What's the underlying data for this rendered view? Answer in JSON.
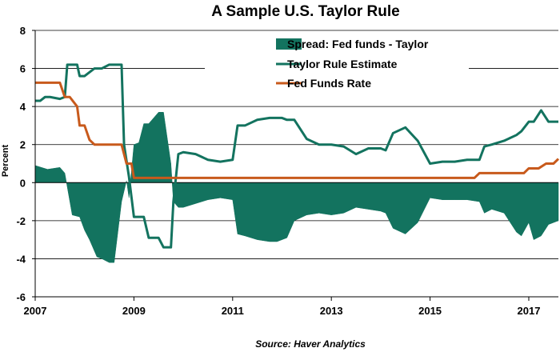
{
  "chart_data": {
    "type": "line",
    "title": "A Sample U.S. Taylor Rule",
    "ylabel": "Percent",
    "xlabel": "",
    "xlim": [
      2007,
      2017.6
    ],
    "ylim": [
      -6,
      8
    ],
    "y_ticks": [
      8,
      6,
      4,
      2,
      0,
      -2,
      -4,
      -6
    ],
    "x_ticks": [
      2007,
      2009,
      2011,
      2013,
      2015,
      2017
    ],
    "grid": "horizontal",
    "legend_position": "top-right",
    "source": "Source: Haver Analytics",
    "colors": {
      "spread": "#13735f",
      "taylor": "#13735f",
      "fedfunds": "#c85a1c",
      "gridline": "#000000"
    },
    "series": [
      {
        "name": "Spread: Fed funds - Taylor",
        "kind": "area",
        "x": [
          2007.0,
          2007.25,
          2007.5,
          2007.6,
          2007.75,
          2007.9,
          2008.0,
          2008.1,
          2008.25,
          2008.35,
          2008.5,
          2008.6,
          2008.75,
          2008.85,
          2008.9,
          2009.0,
          2009.1,
          2009.2,
          2009.3,
          2009.5,
          2009.6,
          2009.75,
          2009.8,
          2009.9,
          2010.0,
          2010.25,
          2010.5,
          2010.75,
          2011.0,
          2011.1,
          2011.25,
          2011.5,
          2011.75,
          2011.9,
          2012.1,
          2012.25,
          2012.5,
          2012.75,
          2013.0,
          2013.25,
          2013.5,
          2013.75,
          2014.0,
          2014.1,
          2014.25,
          2014.5,
          2014.75,
          2015.0,
          2015.25,
          2015.5,
          2015.75,
          2016.0,
          2016.1,
          2016.25,
          2016.5,
          2016.75,
          2016.85,
          2017.0,
          2017.1,
          2017.25,
          2017.4,
          2017.6
        ],
        "values": [
          0.9,
          0.7,
          0.8,
          0.5,
          -1.7,
          -1.8,
          -2.5,
          -3.0,
          -3.9,
          -4.0,
          -4.2,
          -4.2,
          -1.0,
          0.1,
          -0.8,
          2.0,
          2.1,
          3.1,
          3.1,
          3.7,
          3.7,
          1.0,
          -1.0,
          -1.3,
          -1.3,
          -1.1,
          -0.9,
          -0.8,
          -0.9,
          -2.7,
          -2.8,
          -3.0,
          -3.1,
          -3.1,
          -2.9,
          -2.0,
          -1.7,
          -1.6,
          -1.7,
          -1.6,
          -1.3,
          -1.4,
          -1.5,
          -1.6,
          -2.4,
          -2.7,
          -2.1,
          -0.8,
          -0.9,
          -0.9,
          -0.9,
          -1.0,
          -1.6,
          -1.4,
          -1.6,
          -2.6,
          -2.8,
          -2.1,
          -3.0,
          -2.8,
          -2.2,
          -2.0
        ]
      },
      {
        "name": "Taylor Rule Estimate",
        "kind": "line",
        "x": [
          2007.0,
          2007.1,
          2007.2,
          2007.3,
          2007.5,
          2007.6,
          2007.65,
          2007.7,
          2007.85,
          2007.9,
          2008.0,
          2008.2,
          2008.35,
          2008.5,
          2008.75,
          2008.8,
          2008.9,
          2009.0,
          2009.2,
          2009.3,
          2009.5,
          2009.6,
          2009.75,
          2009.8,
          2009.9,
          2010.0,
          2010.25,
          2010.5,
          2010.75,
          2011.0,
          2011.1,
          2011.25,
          2011.5,
          2011.75,
          2012.0,
          2012.1,
          2012.25,
          2012.5,
          2012.75,
          2013.0,
          2013.25,
          2013.5,
          2013.75,
          2014.0,
          2014.1,
          2014.25,
          2014.5,
          2014.75,
          2015.0,
          2015.25,
          2015.5,
          2015.75,
          2016.0,
          2016.1,
          2016.25,
          2016.5,
          2016.75,
          2016.85,
          2017.0,
          2017.1,
          2017.25,
          2017.4,
          2017.6
        ],
        "values": [
          4.3,
          4.3,
          4.5,
          4.5,
          4.4,
          4.5,
          6.2,
          6.2,
          6.2,
          5.6,
          5.6,
          6.0,
          6.0,
          6.2,
          6.2,
          2.0,
          0.3,
          -1.8,
          -1.8,
          -2.9,
          -2.9,
          -3.4,
          -3.4,
          -1.0,
          1.5,
          1.6,
          1.5,
          1.2,
          1.1,
          1.2,
          3.0,
          3.0,
          3.3,
          3.4,
          3.4,
          3.3,
          3.3,
          2.3,
          2.0,
          2.0,
          1.9,
          1.5,
          1.8,
          1.8,
          1.7,
          2.6,
          2.9,
          2.2,
          1.0,
          1.1,
          1.1,
          1.2,
          1.2,
          1.9,
          2.0,
          2.2,
          2.5,
          2.7,
          3.2,
          3.2,
          3.8,
          3.2,
          3.2
        ]
      },
      {
        "name": "Fed Funds Rate",
        "kind": "line",
        "x": [
          2007.0,
          2007.2,
          2007.5,
          2007.6,
          2007.7,
          2007.85,
          2007.9,
          2008.0,
          2008.1,
          2008.2,
          2008.35,
          2008.5,
          2008.75,
          2008.85,
          2008.95,
          2009.0,
          2009.5,
          2010.0,
          2011.0,
          2012.0,
          2013.0,
          2014.0,
          2015.0,
          2015.9,
          2016.0,
          2016.5,
          2016.9,
          2017.0,
          2017.2,
          2017.35,
          2017.5,
          2017.6
        ],
        "values": [
          5.25,
          5.25,
          5.25,
          4.5,
          4.5,
          4.0,
          3.0,
          3.0,
          2.25,
          2.0,
          2.0,
          2.0,
          2.0,
          1.0,
          1.0,
          0.25,
          0.25,
          0.25,
          0.25,
          0.25,
          0.25,
          0.25,
          0.25,
          0.25,
          0.5,
          0.5,
          0.5,
          0.75,
          0.75,
          1.0,
          1.0,
          1.25
        ]
      }
    ]
  }
}
